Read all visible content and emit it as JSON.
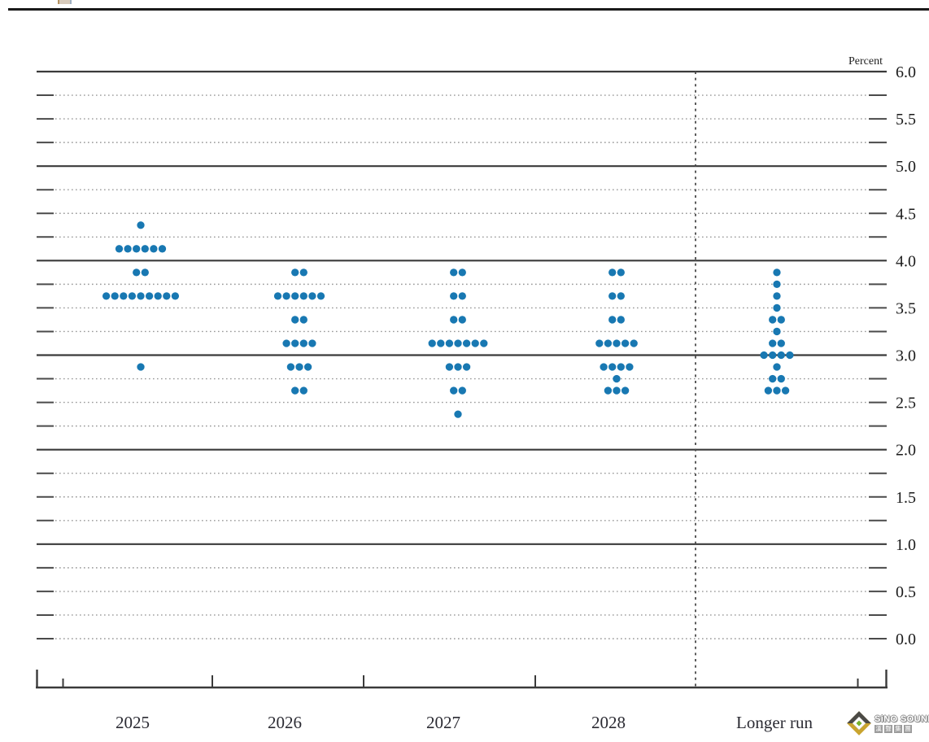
{
  "page": {
    "unit_label": "Percent"
  },
  "watermark": {
    "brand": "SiNO SOUND",
    "chinese_chars": [
      "漢",
      "聲",
      "集",
      "團"
    ],
    "icon_colors": {
      "frame_dark": "#4b4a46",
      "frame_gold": "#c9a42f",
      "inner": "#ffffff",
      "core": "#76b22b"
    }
  },
  "chart_data": {
    "type": "scatter",
    "subtype": "fomc-dot-plot",
    "unit_label": "Percent",
    "ylim": [
      0.0,
      6.0
    ],
    "y_grid_step": 0.25,
    "y_label_step": 0.5,
    "y_tick_labels": [
      "6.0",
      "5.5",
      "5.0",
      "4.5",
      "4.0",
      "3.5",
      "3.0",
      "2.5",
      "2.0",
      "1.5",
      "1.0",
      "0.5",
      "0.0"
    ],
    "solid_gridline_values": [
      6.0,
      5.0,
      4.0,
      3.0,
      2.0,
      1.0
    ],
    "grid_on": true,
    "legend": "none",
    "dot_color": "#1878b2",
    "categories": [
      "2025",
      "2026",
      "2027",
      "2028",
      "Longer run"
    ],
    "dashed_separator_before_category": "Longer run",
    "series": [
      {
        "category": "2025",
        "dots": [
          {
            "rate": 4.375,
            "count": 1
          },
          {
            "rate": 4.125,
            "count": 6
          },
          {
            "rate": 3.875,
            "count": 2
          },
          {
            "rate": 3.625,
            "count": 9
          },
          {
            "rate": 2.875,
            "count": 1
          }
        ]
      },
      {
        "category": "2026",
        "dots": [
          {
            "rate": 3.875,
            "count": 2
          },
          {
            "rate": 3.625,
            "count": 6
          },
          {
            "rate": 3.375,
            "count": 2
          },
          {
            "rate": 3.125,
            "count": 4
          },
          {
            "rate": 2.875,
            "count": 3
          },
          {
            "rate": 2.625,
            "count": 2
          }
        ]
      },
      {
        "category": "2027",
        "dots": [
          {
            "rate": 3.875,
            "count": 2
          },
          {
            "rate": 3.625,
            "count": 2
          },
          {
            "rate": 3.375,
            "count": 2
          },
          {
            "rate": 3.125,
            "count": 7
          },
          {
            "rate": 2.875,
            "count": 3
          },
          {
            "rate": 2.625,
            "count": 2
          },
          {
            "rate": 2.375,
            "count": 1
          }
        ]
      },
      {
        "category": "2028",
        "dots": [
          {
            "rate": 3.875,
            "count": 2
          },
          {
            "rate": 3.625,
            "count": 2
          },
          {
            "rate": 3.375,
            "count": 2
          },
          {
            "rate": 3.125,
            "count": 5
          },
          {
            "rate": 2.875,
            "count": 4
          },
          {
            "rate": 2.75,
            "count": 1
          },
          {
            "rate": 2.625,
            "count": 3
          }
        ]
      },
      {
        "category": "Longer run",
        "dots": [
          {
            "rate": 3.875,
            "count": 1
          },
          {
            "rate": 3.75,
            "count": 1
          },
          {
            "rate": 3.625,
            "count": 1
          },
          {
            "rate": 3.5,
            "count": 1
          },
          {
            "rate": 3.375,
            "count": 2
          },
          {
            "rate": 3.25,
            "count": 1
          },
          {
            "rate": 3.125,
            "count": 2
          },
          {
            "rate": 3.0,
            "count": 4
          },
          {
            "rate": 2.875,
            "count": 1
          },
          {
            "rate": 2.75,
            "count": 2
          },
          {
            "rate": 2.625,
            "count": 3
          }
        ]
      }
    ]
  }
}
